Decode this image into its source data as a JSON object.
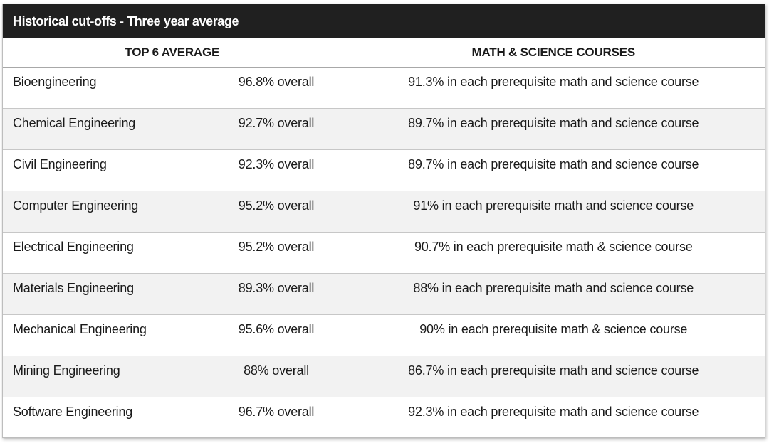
{
  "title": "Historical cut-offs - Three year average",
  "headers": {
    "top6": "TOP 6 AVERAGE",
    "mathsci": "MATH & SCIENCE COURSES"
  },
  "rows": [
    {
      "program": "Bioengineering",
      "average": "96.8% overall",
      "requirement": "91.3% in each prerequisite math and science course"
    },
    {
      "program": "Chemical Engineering",
      "average": "92.7% overall",
      "requirement": "89.7% in each prerequisite math and science course"
    },
    {
      "program": "Civil Engineering",
      "average": "92.3% overall",
      "requirement": "89.7% in each prerequisite math and science course"
    },
    {
      "program": "Computer Engineering",
      "average": "95.2% overall",
      "requirement": "91% in each prerequisite math and science course"
    },
    {
      "program": "Electrical Engineering",
      "average": "95.2% overall",
      "requirement": "90.7% in each prerequisite math & science course"
    },
    {
      "program": "Materials Engineering",
      "average": "89.3% overall",
      "requirement": "88% in each prerequisite math and science course"
    },
    {
      "program": "Mechanical Engineering",
      "average": "95.6% overall",
      "requirement": "90% in each prerequisite math & science course"
    },
    {
      "program": "Mining Engineering",
      "average": "88% overall",
      "requirement": "86.7% in each prerequisite math and science course"
    },
    {
      "program": "Software Engineering",
      "average": "96.7% overall",
      "requirement": "92.3% in each prerequisite math and science course"
    }
  ]
}
